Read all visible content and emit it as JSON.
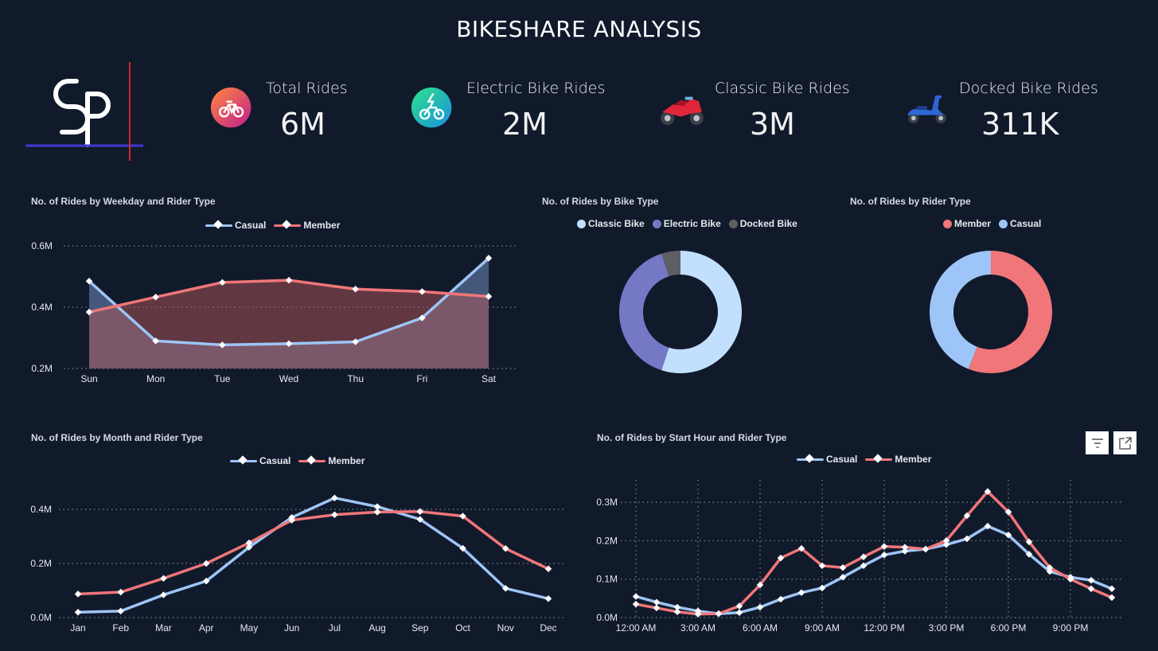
{
  "header": {
    "title": "BIKESHARE ANALYSIS"
  },
  "kpis": [
    {
      "label": "Total Rides",
      "value": "6M",
      "icon": "bicycle-icon"
    },
    {
      "label": "Electric Bike Rides",
      "value": "2M",
      "icon": "electric-bike-icon"
    },
    {
      "label": "Classic Bike Rides",
      "value": "3M",
      "icon": "motorbike-icon"
    },
    {
      "label": "Docked Bike Rides",
      "value": "311K",
      "icon": "scooter-icon"
    }
  ],
  "colors": {
    "casual": "#9ec5f7",
    "member": "#f07679",
    "classic": "#c2e0fd",
    "electric": "#7578c4",
    "docked": "#5f5f63",
    "background": "#111a2b"
  },
  "chart_data": [
    {
      "id": "weekday",
      "type": "area",
      "title": "No. of Rides by Weekday and Rider Type",
      "legend": [
        "Casual",
        "Member"
      ],
      "categories": [
        "Sun",
        "Mon",
        "Tue",
        "Wed",
        "Thu",
        "Fri",
        "Sat"
      ],
      "series": [
        {
          "name": "Casual",
          "values": [
            0.485,
            0.29,
            0.277,
            0.281,
            0.287,
            0.365,
            0.56
          ]
        },
        {
          "name": "Member",
          "values": [
            0.384,
            0.433,
            0.481,
            0.488,
            0.459,
            0.451,
            0.435
          ]
        }
      ],
      "yticks": [
        "0.2M",
        "0.4M",
        "0.6M"
      ],
      "ylim": [
        0.2,
        0.6
      ]
    },
    {
      "id": "biketype",
      "type": "pie",
      "title": "No. of Rides by Bike Type",
      "legend": [
        "Classic Bike",
        "Electric Bike",
        "Docked Bike"
      ],
      "values": [
        0.55,
        0.4,
        0.05
      ]
    },
    {
      "id": "ridertype",
      "type": "pie",
      "title": "No. of Rides by Rider Type",
      "legend": [
        "Member",
        "Casual"
      ],
      "values": [
        0.56,
        0.44
      ]
    },
    {
      "id": "month",
      "type": "line",
      "title": "No. of Rides by Month and Rider Type",
      "legend": [
        "Casual",
        "Member"
      ],
      "categories": [
        "Jan",
        "Feb",
        "Mar",
        "Apr",
        "May",
        "Jun",
        "Jul",
        "Aug",
        "Sep",
        "Oct",
        "Nov",
        "Dec"
      ],
      "series": [
        {
          "name": "Casual",
          "values": [
            0.02,
            0.024,
            0.084,
            0.135,
            0.26,
            0.37,
            0.442,
            0.41,
            0.363,
            0.256,
            0.108,
            0.07
          ]
        },
        {
          "name": "Member",
          "values": [
            0.087,
            0.094,
            0.145,
            0.2,
            0.276,
            0.36,
            0.38,
            0.39,
            0.392,
            0.375,
            0.255,
            0.18
          ]
        }
      ],
      "yticks": [
        "0.0M",
        "0.2M",
        "0.4M"
      ],
      "ylim": [
        0,
        0.5
      ]
    },
    {
      "id": "hour",
      "type": "line",
      "title": "No. of Rides by Start Hour and Rider Type",
      "legend": [
        "Casual",
        "Member"
      ],
      "x": [
        0,
        1,
        2,
        3,
        4,
        5,
        6,
        7,
        8,
        9,
        10,
        11,
        12,
        13,
        14,
        15,
        16,
        17,
        18,
        19,
        20,
        21,
        22,
        23
      ],
      "xticks": [
        "12:00 AM",
        "3:00 AM",
        "6:00 AM",
        "9:00 AM",
        "12:00 PM",
        "3:00 PM",
        "6:00 PM",
        "9:00 PM"
      ],
      "series": [
        {
          "name": "Casual",
          "values": [
            0.055,
            0.04,
            0.027,
            0.017,
            0.01,
            0.013,
            0.027,
            0.048,
            0.065,
            0.077,
            0.105,
            0.135,
            0.163,
            0.173,
            0.178,
            0.19,
            0.205,
            0.238,
            0.215,
            0.165,
            0.12,
            0.105,
            0.097,
            0.075
          ]
        },
        {
          "name": "Member",
          "values": [
            0.035,
            0.025,
            0.015,
            0.009,
            0.01,
            0.03,
            0.085,
            0.155,
            0.18,
            0.135,
            0.13,
            0.158,
            0.185,
            0.183,
            0.178,
            0.2,
            0.265,
            0.328,
            0.275,
            0.197,
            0.13,
            0.1,
            0.075,
            0.052
          ]
        }
      ],
      "yticks": [
        "0.0M",
        "0.1M",
        "0.2M",
        "0.3M"
      ],
      "ylim": [
        0,
        0.35
      ]
    }
  ]
}
